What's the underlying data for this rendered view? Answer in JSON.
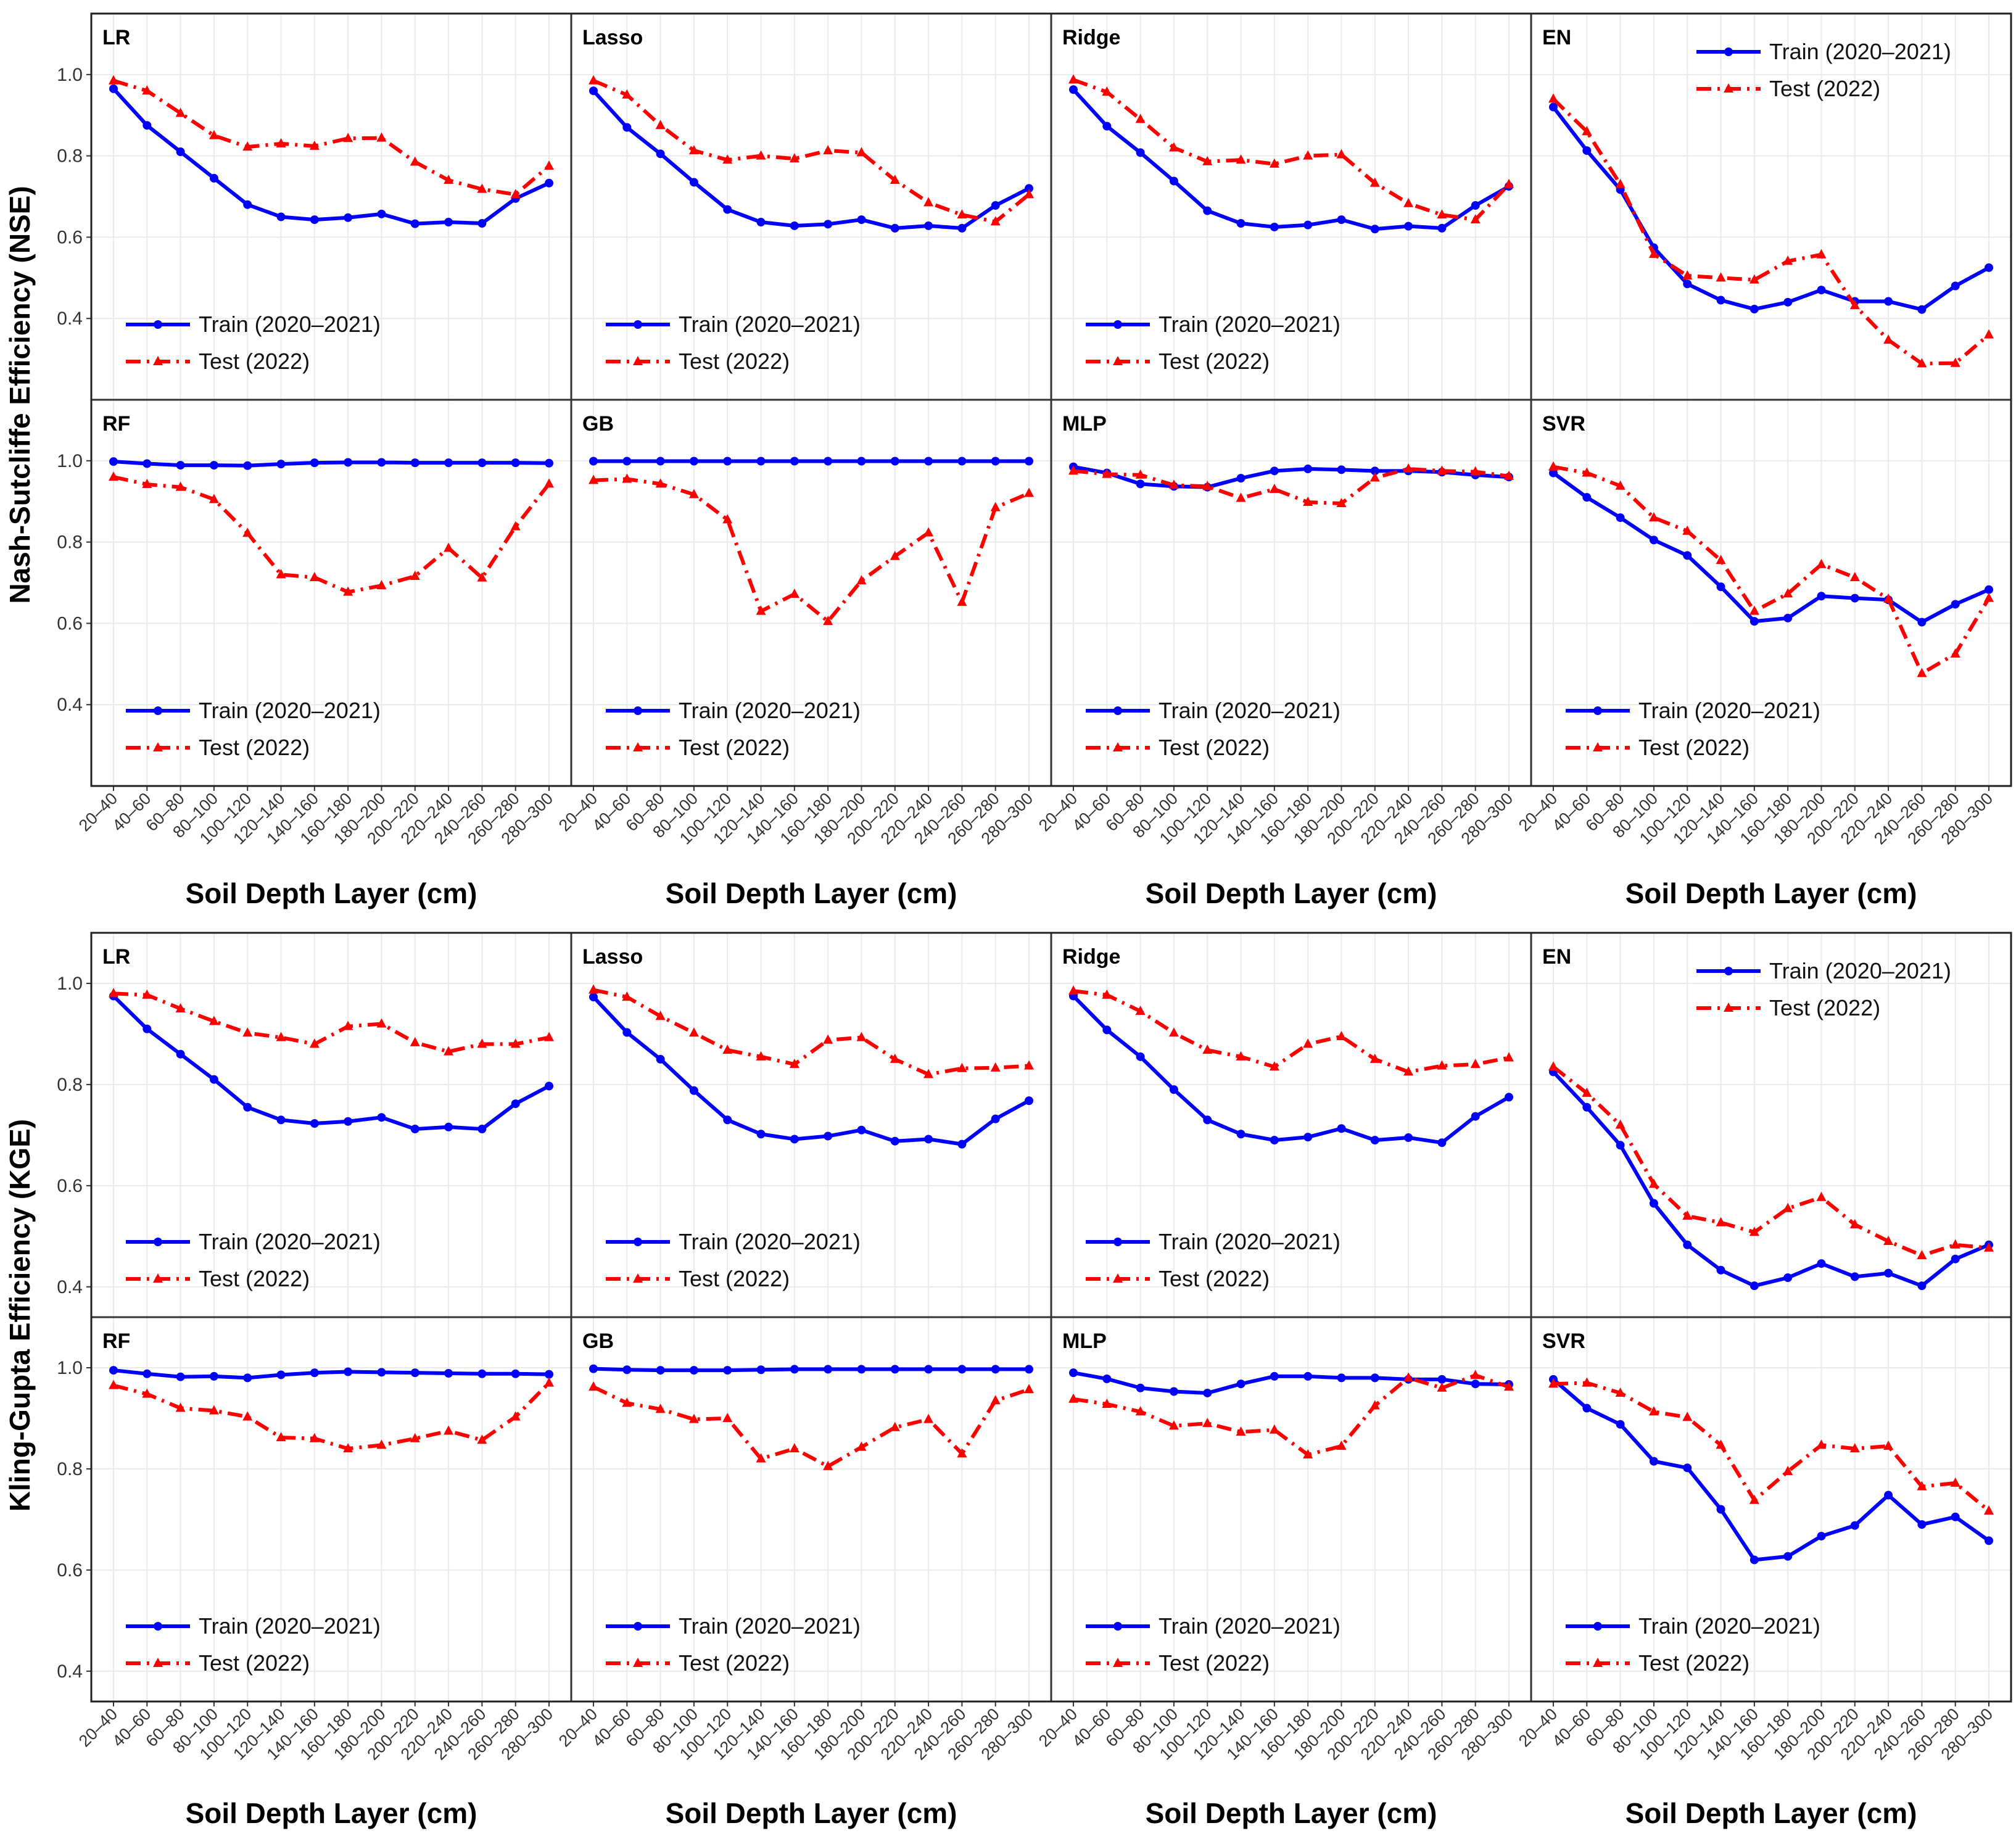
{
  "chart_data": [
    {
      "type": "line",
      "title": "",
      "ylabel": "Nash-Sutcliffe Efficiency (NSE)",
      "xlabel": "Soil Depth Layer (cm)",
      "ylim": [
        0.2,
        1.15
      ],
      "yticks": [
        "0.4",
        "0.6",
        "0.8",
        "1.0"
      ],
      "ytick_values": [
        0.4,
        0.6,
        0.8,
        1.0
      ],
      "categories": [
        "20–40",
        "40–60",
        "60–80",
        "80–100",
        "100–120",
        "120–140",
        "140–160",
        "160–180",
        "180–200",
        "200–220",
        "220–240",
        "240–260",
        "260–280",
        "280–300"
      ],
      "panels": [
        {
          "name": "LR",
          "legend": "bottom-left",
          "series": [
            {
              "name": "Train (2020–2021)",
              "values": [
                0.965,
                0.875,
                0.81,
                0.745,
                0.68,
                0.65,
                0.643,
                0.648,
                0.657,
                0.633,
                0.637,
                0.634,
                0.695,
                0.733
              ]
            },
            {
              "name": "Test (2022)",
              "values": [
                0.985,
                0.96,
                0.905,
                0.85,
                0.822,
                0.83,
                0.824,
                0.843,
                0.844,
                0.785,
                0.74,
                0.718,
                0.705,
                0.775
              ]
            }
          ]
        },
        {
          "name": "Lasso",
          "legend": "bottom-left",
          "series": [
            {
              "name": "Train (2020–2021)",
              "values": [
                0.96,
                0.87,
                0.805,
                0.735,
                0.668,
                0.637,
                0.628,
                0.632,
                0.643,
                0.622,
                0.628,
                0.622,
                0.678,
                0.72
              ]
            },
            {
              "name": "Test (2022)",
              "values": [
                0.985,
                0.95,
                0.875,
                0.813,
                0.79,
                0.8,
                0.793,
                0.813,
                0.808,
                0.74,
                0.685,
                0.655,
                0.638,
                0.705
              ]
            }
          ]
        },
        {
          "name": "Ridge",
          "legend": "bottom-left",
          "series": [
            {
              "name": "Train (2020–2021)",
              "values": [
                0.963,
                0.873,
                0.808,
                0.738,
                0.665,
                0.634,
                0.625,
                0.63,
                0.643,
                0.62,
                0.627,
                0.622,
                0.678,
                0.725
              ]
            },
            {
              "name": "Test (2022)",
              "values": [
                0.987,
                0.957,
                0.89,
                0.82,
                0.786,
                0.79,
                0.78,
                0.8,
                0.803,
                0.733,
                0.683,
                0.655,
                0.643,
                0.73
              ]
            }
          ]
        },
        {
          "name": "EN",
          "legend": "top-right",
          "series": [
            {
              "name": "Train (2020–2021)",
              "values": [
                0.92,
                0.813,
                0.717,
                0.574,
                0.485,
                0.445,
                0.423,
                0.44,
                0.47,
                0.442,
                0.442,
                0.422,
                0.48,
                0.525
              ]
            },
            {
              "name": "Test (2022)",
              "values": [
                0.94,
                0.86,
                0.73,
                0.558,
                0.505,
                0.5,
                0.495,
                0.541,
                0.557,
                0.432,
                0.347,
                0.289,
                0.29,
                0.36
              ]
            }
          ]
        },
        {
          "name": "RF",
          "legend": "bottom-left",
          "series": [
            {
              "name": "Train (2020–2021)",
              "values": [
                0.998,
                0.993,
                0.989,
                0.989,
                0.988,
                0.992,
                0.995,
                0.996,
                0.996,
                0.995,
                0.995,
                0.995,
                0.995,
                0.994
              ]
            },
            {
              "name": "Test (2022)",
              "values": [
                0.96,
                0.942,
                0.935,
                0.905,
                0.822,
                0.72,
                0.713,
                0.677,
                0.693,
                0.716,
                0.785,
                0.712,
                0.838,
                0.943
              ]
            }
          ]
        },
        {
          "name": "GB",
          "legend": "bottom-left",
          "series": [
            {
              "name": "Train (2020–2021)",
              "values": [
                0.999,
                0.999,
                0.999,
                0.999,
                0.999,
                0.999,
                0.999,
                0.999,
                0.999,
                0.999,
                0.999,
                0.999,
                0.999,
                0.999
              ]
            },
            {
              "name": "Test (2022)",
              "values": [
                0.952,
                0.955,
                0.943,
                0.917,
                0.855,
                0.63,
                0.672,
                0.605,
                0.705,
                0.765,
                0.823,
                0.652,
                0.885,
                0.92
              ]
            }
          ]
        },
        {
          "name": "MLP",
          "legend": "bottom-left",
          "series": [
            {
              "name": "Train (2020–2021)",
              "values": [
                0.985,
                0.97,
                0.943,
                0.937,
                0.935,
                0.957,
                0.975,
                0.98,
                0.978,
                0.975,
                0.975,
                0.972,
                0.965,
                0.96
              ]
            },
            {
              "name": "Test (2022)",
              "values": [
                0.975,
                0.967,
                0.965,
                0.94,
                0.937,
                0.908,
                0.93,
                0.898,
                0.895,
                0.958,
                0.98,
                0.975,
                0.973,
                0.962
              ]
            }
          ]
        },
        {
          "name": "SVR",
          "legend": "bottom-left",
          "series": [
            {
              "name": "Train (2020–2021)",
              "values": [
                0.97,
                0.91,
                0.86,
                0.805,
                0.767,
                0.69,
                0.605,
                0.613,
                0.667,
                0.662,
                0.658,
                0.603,
                0.647,
                0.683
              ]
            },
            {
              "name": "Test (2022)",
              "values": [
                0.985,
                0.97,
                0.938,
                0.86,
                0.827,
                0.755,
                0.63,
                0.673,
                0.745,
                0.713,
                0.66,
                0.477,
                0.525,
                0.662
              ]
            }
          ]
        }
      ]
    },
    {
      "type": "line",
      "title": "",
      "ylabel": "Kling-Gupta Efficiency (KGE)",
      "xlabel": "Soil Depth Layer (cm)",
      "ylim": [
        0.34,
        1.1
      ],
      "yticks": [
        "0.4",
        "0.6",
        "0.8",
        "1.0"
      ],
      "ytick_values": [
        0.4,
        0.6,
        0.8,
        1.0
      ],
      "categories": [
        "20–40",
        "40–60",
        "60–80",
        "80–100",
        "100–120",
        "120–140",
        "140–160",
        "160–180",
        "180–200",
        "200–220",
        "220–240",
        "240–260",
        "260–280",
        "280–300"
      ],
      "panels": [
        {
          "name": "LR",
          "legend": "bottom-left",
          "series": [
            {
              "name": "Train (2020–2021)",
              "values": [
                0.975,
                0.91,
                0.86,
                0.81,
                0.755,
                0.73,
                0.723,
                0.727,
                0.735,
                0.712,
                0.716,
                0.712,
                0.762,
                0.797
              ]
            },
            {
              "name": "Test (2022)",
              "values": [
                0.98,
                0.977,
                0.95,
                0.925,
                0.902,
                0.893,
                0.88,
                0.915,
                0.92,
                0.883,
                0.865,
                0.88,
                0.88,
                0.893
              ]
            }
          ]
        },
        {
          "name": "Lasso",
          "legend": "bottom-left",
          "series": [
            {
              "name": "Train (2020–2021)",
              "values": [
                0.973,
                0.903,
                0.85,
                0.788,
                0.73,
                0.702,
                0.692,
                0.698,
                0.71,
                0.688,
                0.692,
                0.682,
                0.732,
                0.768
              ]
            },
            {
              "name": "Test (2022)",
              "values": [
                0.987,
                0.973,
                0.935,
                0.902,
                0.868,
                0.855,
                0.84,
                0.888,
                0.893,
                0.85,
                0.82,
                0.832,
                0.833,
                0.837
              ]
            }
          ]
        },
        {
          "name": "Ridge",
          "legend": "bottom-left",
          "series": [
            {
              "name": "Train (2020–2021)",
              "values": [
                0.975,
                0.908,
                0.855,
                0.79,
                0.73,
                0.702,
                0.69,
                0.696,
                0.713,
                0.69,
                0.695,
                0.685,
                0.737,
                0.775
              ]
            },
            {
              "name": "Test (2022)",
              "values": [
                0.985,
                0.977,
                0.945,
                0.902,
                0.868,
                0.855,
                0.835,
                0.88,
                0.895,
                0.85,
                0.825,
                0.837,
                0.84,
                0.853
              ]
            }
          ]
        },
        {
          "name": "EN",
          "legend": "top-right",
          "series": [
            {
              "name": "Train (2020–2021)",
              "values": [
                0.825,
                0.755,
                0.68,
                0.565,
                0.483,
                0.433,
                0.402,
                0.418,
                0.446,
                0.42,
                0.427,
                0.402,
                0.455,
                0.483
              ]
            },
            {
              "name": "Test (2022)",
              "values": [
                0.835,
                0.783,
                0.72,
                0.603,
                0.54,
                0.527,
                0.508,
                0.555,
                0.577,
                0.523,
                0.49,
                0.462,
                0.483,
                0.477
              ]
            }
          ]
        },
        {
          "name": "RF",
          "legend": "bottom-left",
          "series": [
            {
              "name": "Train (2020–2021)",
              "values": [
                0.995,
                0.988,
                0.982,
                0.983,
                0.98,
                0.986,
                0.99,
                0.992,
                0.991,
                0.99,
                0.989,
                0.988,
                0.988,
                0.987
              ]
            },
            {
              "name": "Test (2022)",
              "values": [
                0.965,
                0.948,
                0.92,
                0.915,
                0.903,
                0.862,
                0.86,
                0.84,
                0.847,
                0.86,
                0.875,
                0.857,
                0.903,
                0.97
              ]
            }
          ]
        },
        {
          "name": "GB",
          "legend": "bottom-left",
          "series": [
            {
              "name": "Train (2020–2021)",
              "values": [
                0.998,
                0.996,
                0.995,
                0.995,
                0.995,
                0.996,
                0.997,
                0.997,
                0.997,
                0.997,
                0.997,
                0.997,
                0.997,
                0.997
              ]
            },
            {
              "name": "Test (2022)",
              "values": [
                0.962,
                0.93,
                0.918,
                0.898,
                0.9,
                0.82,
                0.84,
                0.805,
                0.843,
                0.882,
                0.898,
                0.83,
                0.935,
                0.957
              ]
            }
          ]
        },
        {
          "name": "MLP",
          "legend": "bottom-left",
          "series": [
            {
              "name": "Train (2020–2021)",
              "values": [
                0.99,
                0.978,
                0.96,
                0.953,
                0.95,
                0.968,
                0.983,
                0.983,
                0.98,
                0.98,
                0.977,
                0.977,
                0.968,
                0.967
              ]
            },
            {
              "name": "Test (2022)",
              "values": [
                0.938,
                0.928,
                0.913,
                0.885,
                0.89,
                0.873,
                0.877,
                0.828,
                0.845,
                0.925,
                0.98,
                0.96,
                0.985,
                0.962
              ]
            }
          ]
        },
        {
          "name": "SVR",
          "legend": "bottom-left",
          "series": [
            {
              "name": "Train (2020–2021)",
              "values": [
                0.977,
                0.92,
                0.888,
                0.815,
                0.802,
                0.72,
                0.62,
                0.627,
                0.667,
                0.688,
                0.748,
                0.69,
                0.705,
                0.658
              ]
            },
            {
              "name": "Test (2022)",
              "values": [
                0.968,
                0.97,
                0.95,
                0.913,
                0.902,
                0.847,
                0.738,
                0.795,
                0.847,
                0.84,
                0.845,
                0.765,
                0.772,
                0.717
              ]
            }
          ]
        }
      ]
    }
  ],
  "colors": {
    "train": "#0000ff",
    "test": "#ff0000",
    "grid": "#ebebeb",
    "frame": "#333333"
  }
}
